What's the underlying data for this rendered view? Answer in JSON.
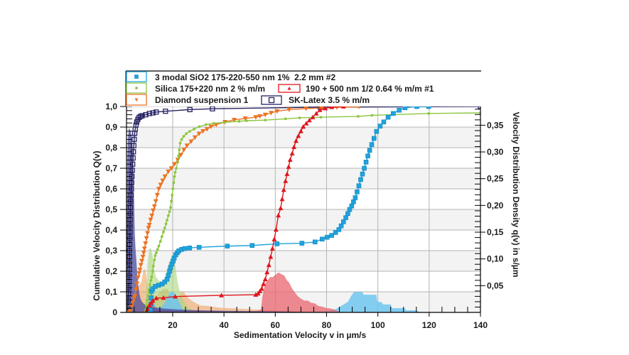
{
  "chart_data": {
    "type": "line",
    "title": "",
    "xlabel": "Sedimentation Velocity v in µm/s",
    "ylabel": "Cumulative Velocity Distribution Q(v)",
    "y2label": "Velocity Distribution Density q(v) in s/µm",
    "xlim": [
      2,
      140
    ],
    "ylim": [
      0,
      1
    ],
    "y2lim": [
      0,
      0.385
    ],
    "xticks": [
      20,
      40,
      60,
      80,
      100,
      120,
      140
    ],
    "xtick_labels": [
      "20",
      "40",
      "60",
      "80",
      "100",
      "120",
      "140"
    ],
    "yticks": [
      0,
      0.1,
      0.2,
      0.3,
      0.4,
      0.5,
      0.6,
      0.7,
      0.8,
      0.9,
      1.0
    ],
    "ytick_labels": [
      "0",
      "0,1",
      "0,2",
      "0,3",
      "0,4",
      "0,5",
      "0,6",
      "0,7",
      "0,8",
      "0,9",
      "1,0"
    ],
    "y2ticks": [
      0.05,
      0.1,
      0.15,
      0.2,
      0.25,
      0.3,
      0.35
    ],
    "y2tick_labels": [
      "0,05",
      "0,10",
      "0,15",
      "0,20",
      "0,25",
      "0,30",
      "0,35"
    ],
    "grid": true,
    "legend_position": "top",
    "series": [
      {
        "name": "3 modal SiO2 175-220-550 nm 1%  2.2 mm #2",
        "color": "#1fa3dd",
        "fill_color": "#6ec6ee",
        "marker": "square",
        "cumulative": {
          "x": [
            11.0,
            11.3,
            11.5,
            11.6,
            11.8,
            12.2,
            13.2,
            14.5,
            15.9,
            16.9,
            17.8,
            18.3,
            18.8,
            19.2,
            19.7,
            20.2,
            20.6,
            21.2,
            21.8,
            22.4,
            23.5,
            24.7,
            26.6,
            30.3,
            41.3,
            51.0,
            60.7,
            70.4,
            75.5,
            78.3,
            80.2,
            82.0,
            83.5,
            84.8,
            85.7,
            86.6,
            87.5,
            88.3,
            89.0,
            89.8,
            90.5,
            91.2,
            91.9,
            92.6,
            93.3,
            94.0,
            94.7,
            95.4,
            96.1,
            96.8,
            97.6,
            98.5,
            99.5,
            100.9,
            102.3,
            104.0,
            106.0,
            108.3,
            110.6,
            115.2,
            119.8
          ],
          "y": [
            0.0,
            0.011,
            0.04,
            0.07,
            0.103,
            0.115,
            0.126,
            0.132,
            0.138,
            0.148,
            0.161,
            0.18,
            0.2,
            0.218,
            0.235,
            0.25,
            0.264,
            0.28,
            0.29,
            0.299,
            0.306,
            0.31,
            0.313,
            0.316,
            0.322,
            0.325,
            0.333,
            0.336,
            0.342,
            0.356,
            0.365,
            0.374,
            0.388,
            0.402,
            0.42,
            0.44,
            0.46,
            0.48,
            0.5,
            0.517,
            0.537,
            0.557,
            0.585,
            0.615,
            0.645,
            0.672,
            0.7,
            0.73,
            0.76,
            0.787,
            0.815,
            0.845,
            0.879,
            0.905,
            0.925,
            0.948,
            0.966,
            0.982,
            0.994,
            1.0,
            1.0
          ]
        },
        "density": {
          "x": [
            11.0,
            11.5,
            12.0,
            12.5,
            13.5,
            15.0,
            16.5,
            18.0,
            19.5,
            21.0,
            22.5,
            24.0,
            26.0,
            30.0,
            50.0,
            70.0,
            78.0,
            80.0,
            82.0,
            84.0,
            86.0,
            88.4,
            89.5,
            90.7,
            94.0,
            94.5,
            99.4,
            99.8,
            101.5,
            102.0,
            105.0,
            105.5,
            110.5,
            111.0,
            115.0,
            116.0,
            120.0
          ],
          "q": [
            0.0,
            0.03,
            0.035,
            0.02,
            0.01,
            0.008,
            0.015,
            0.03,
            0.04,
            0.035,
            0.02,
            0.006,
            0.002,
            0.001,
            0.001,
            0.001,
            0.002,
            0.003,
            0.004,
            0.007,
            0.013,
            0.02,
            0.03,
            0.038,
            0.038,
            0.033,
            0.033,
            0.02,
            0.019,
            0.015,
            0.015,
            0.008,
            0.008,
            0.004,
            0.004,
            0.001,
            0.0
          ]
        }
      },
      {
        "name": "Silica 175+220 nm 2 % m/m",
        "color": "#8cc63e",
        "fill_color": "#a9d67d",
        "marker": "circle",
        "cumulative": {
          "x": [
            9.2,
            9.5,
            9.8,
            10.1,
            10.4,
            10.8,
            11.1,
            11.5,
            11.8,
            12.2,
            12.5,
            12.9,
            13.2,
            13.6,
            14.1,
            14.6,
            15.2,
            15.8,
            16.4,
            16.9,
            17.4,
            17.8,
            18.3,
            18.8,
            19.2,
            19.5,
            19.8,
            20.1,
            20.4,
            20.7,
            21.0,
            21.4,
            22.0,
            22.3,
            22.6,
            22.9,
            23.5,
            24.3,
            25.3,
            26.6,
            28.3,
            30.3,
            33.0,
            36.0,
            40.0,
            45.9,
            48.8,
            56.1,
            64.0,
            69.5,
            77.8,
            92.3,
            97.7,
            119.8,
            140
          ],
          "y": [
            0.0,
            0.011,
            0.035,
            0.06,
            0.08,
            0.11,
            0.135,
            0.155,
            0.172,
            0.2,
            0.225,
            0.255,
            0.276,
            0.29,
            0.305,
            0.322,
            0.345,
            0.368,
            0.391,
            0.41,
            0.43,
            0.448,
            0.47,
            0.49,
            0.51,
            0.54,
            0.57,
            0.6,
            0.63,
            0.66,
            0.68,
            0.7,
            0.73,
            0.76,
            0.79,
            0.822,
            0.84,
            0.855,
            0.868,
            0.879,
            0.89,
            0.902,
            0.912,
            0.918,
            0.923,
            0.928,
            0.931,
            0.934,
            0.94,
            0.945,
            0.948,
            0.952,
            0.957,
            0.966,
            0.969
          ]
        },
        "density": {
          "x": [
            8.5,
            9.5,
            10.2,
            10.9,
            11.5,
            12.0,
            12.8,
            13.5,
            14.5,
            15.5,
            16.5,
            17.3,
            18.0,
            18.8,
            19.5,
            20.3,
            21.0,
            21.8,
            22.5,
            23.5,
            24.5,
            26.0,
            28.0,
            30.0
          ],
          "q": [
            0.0,
            0.03,
            0.09,
            0.12,
            0.12,
            0.11,
            0.08,
            0.066,
            0.06,
            0.057,
            0.06,
            0.07,
            0.085,
            0.095,
            0.105,
            0.11,
            0.09,
            0.06,
            0.044,
            0.03,
            0.02,
            0.01,
            0.004,
            0.0
          ]
        }
      },
      {
        "name": "190 + 500 nm 1/2 0.64 % m/m #1",
        "color": "#e0161c",
        "fill_color": "#e9646e",
        "marker": "triangle-up",
        "cumulative": {
          "x": [
            9.5,
            10.2,
            10.9,
            11.6,
            12.3,
            13.6,
            16.4,
            21.0,
            39.0,
            52.4,
            53.3,
            54.0,
            54.7,
            55.4,
            56.1,
            56.8,
            57.5,
            58.2,
            58.9,
            59.6,
            60.3,
            61.2,
            62.1,
            62.7,
            63.3,
            64.0,
            64.6,
            65.2,
            65.8,
            66.6,
            67.3,
            68.1,
            69.0,
            70.0,
            70.9,
            72.1,
            73.3,
            74.6,
            76.0,
            77.4,
            79.5,
            82.0,
            86.6
          ],
          "y": [
            0.0,
            0.017,
            0.034,
            0.046,
            0.057,
            0.069,
            0.071,
            0.077,
            0.083,
            0.086,
            0.092,
            0.103,
            0.115,
            0.138,
            0.161,
            0.195,
            0.23,
            0.27,
            0.31,
            0.355,
            0.402,
            0.471,
            0.506,
            0.55,
            0.595,
            0.638,
            0.672,
            0.707,
            0.741,
            0.772,
            0.803,
            0.833,
            0.857,
            0.88,
            0.902,
            0.918,
            0.933,
            0.948,
            0.966,
            0.983,
            0.991,
            0.997,
            1.0
          ]
        },
        "density": {
          "x": [
            9.2,
            10.0,
            11.0,
            12.3,
            13.5,
            16.0,
            20.0,
            30.0,
            40.0,
            50.0,
            53.0,
            54.4,
            55.0,
            56.0,
            57.0,
            58.0,
            59.0,
            60.0,
            61.0,
            61.6,
            62.5,
            63.5,
            64.5,
            65.4,
            66.5,
            67.7,
            68.8,
            69.9,
            71.3,
            72.7,
            74.0,
            75.4,
            76.8,
            78.2,
            80.0,
            82.0,
            84.0,
            86.0
          ],
          "q": [
            0.0,
            0.012,
            0.017,
            0.015,
            0.006,
            0.004,
            0.003,
            0.003,
            0.002,
            0.002,
            0.003,
            0.005,
            0.03,
            0.053,
            0.06,
            0.066,
            0.066,
            0.07,
            0.074,
            0.074,
            0.071,
            0.069,
            0.06,
            0.056,
            0.045,
            0.037,
            0.03,
            0.026,
            0.022,
            0.022,
            0.018,
            0.017,
            0.012,
            0.011,
            0.008,
            0.007,
            0.003,
            0.0
          ]
        }
      },
      {
        "name": "Diamond suspension 1",
        "color": "#ec7222",
        "fill_color": "#f0a463",
        "marker": "triangle-down",
        "cumulative": {
          "x": [
            2.8,
            3.5,
            4.0,
            4.5,
            5.0,
            5.3,
            5.7,
            6.1,
            6.5,
            6.9,
            7.2,
            7.6,
            8.0,
            8.4,
            8.7,
            9.0,
            9.4,
            9.8,
            10.2,
            10.6,
            10.9,
            11.4,
            11.9,
            12.4,
            12.9,
            13.4,
            14.0,
            14.6,
            15.3,
            16.1,
            17.0,
            18.3,
            19.5,
            20.7,
            22.0,
            23.2,
            24.4,
            25.6,
            27.2,
            28.7,
            30.3,
            31.8,
            33.4,
            34.9,
            37.0,
            40.4,
            44.0,
            48.3,
            52.4,
            54.0,
            56.1,
            58.4,
            60.7,
            65.4,
            72.0,
            78.0,
            84.0,
            92.6
          ],
          "y": [
            0.0,
            0.006,
            0.03,
            0.05,
            0.07,
            0.08,
            0.11,
            0.14,
            0.17,
            0.19,
            0.207,
            0.23,
            0.25,
            0.27,
            0.29,
            0.31,
            0.335,
            0.36,
            0.385,
            0.41,
            0.425,
            0.45,
            0.47,
            0.495,
            0.515,
            0.54,
            0.57,
            0.6,
            0.62,
            0.64,
            0.66,
            0.684,
            0.7,
            0.72,
            0.741,
            0.765,
            0.79,
            0.81,
            0.83,
            0.85,
            0.868,
            0.88,
            0.89,
            0.902,
            0.912,
            0.925,
            0.935,
            0.942,
            0.948,
            0.953,
            0.96,
            0.969,
            0.977,
            0.985,
            0.99,
            0.993,
            0.996,
            0.999
          ]
        },
        "density": {
          "x": [
            3.5,
            4.5,
            5.0,
            5.9,
            6.8,
            7.8,
            8.6,
            9.5,
            10.0,
            10.6,
            12.0,
            13.5,
            15.0,
            16.5,
            18.0,
            18.9,
            20.0,
            21.0,
            22.5,
            23.5,
            24.4,
            26.0,
            28.0,
            30.8,
            34.0,
            38.0,
            42.0,
            46.0,
            50.0,
            55.0,
            60.0,
            65.0,
            70.0,
            75.0
          ],
          "q": [
            0.0,
            0.02,
            0.03,
            0.044,
            0.05,
            0.057,
            0.08,
            0.08,
            0.057,
            0.04,
            0.035,
            0.03,
            0.038,
            0.044,
            0.044,
            0.036,
            0.025,
            0.017,
            0.03,
            0.04,
            0.038,
            0.027,
            0.02,
            0.013,
            0.012,
            0.009,
            0.008,
            0.007,
            0.006,
            0.005,
            0.004,
            0.003,
            0.002,
            0.0
          ]
        }
      },
      {
        "name": "SK-Latex 3.5 % m/m",
        "color": "#262262",
        "fill_color": "#4a4a9a",
        "marker": "open-square",
        "cumulative": {
          "x": [
            2.45,
            2.55,
            2.65,
            2.75,
            2.85,
            2.95,
            3.0,
            3.05,
            3.1,
            3.15,
            3.2,
            3.25,
            3.3,
            3.35,
            3.4,
            3.45,
            3.5,
            3.55,
            3.65,
            3.75,
            3.9,
            4.0,
            4.1,
            4.25,
            4.4,
            4.55,
            4.7,
            4.85,
            5.0,
            5.2,
            5.4,
            5.7,
            6.0,
            6.4,
            6.9,
            7.5,
            8.1,
            9.5,
            10.9,
            12.3,
            13.6,
            17.2,
            26.7,
            35.5,
            77.5,
            140
          ],
          "y": [
            0.0,
            0.03,
            0.06,
            0.09,
            0.12,
            0.15,
            0.18,
            0.21,
            0.24,
            0.27,
            0.3,
            0.33,
            0.36,
            0.39,
            0.42,
            0.45,
            0.48,
            0.51,
            0.54,
            0.57,
            0.6,
            0.63,
            0.66,
            0.69,
            0.72,
            0.75,
            0.78,
            0.81,
            0.84,
            0.87,
            0.89,
            0.91,
            0.925,
            0.937,
            0.947,
            0.952,
            0.955,
            0.96,
            0.966,
            0.969,
            0.973,
            0.977,
            0.985,
            0.989,
            0.997,
            1.0
          ]
        },
        "density": {
          "x": [
            2.0,
            2.3,
            2.6,
            3.0,
            3.5,
            4.0,
            4.5,
            4.9,
            5.2,
            5.5,
            5.8,
            6.2,
            6.6,
            7.0,
            7.5,
            8.0,
            9.0,
            10.0,
            12.0,
            15.0,
            20.0,
            30.0,
            40.0,
            60.0,
            80.0
          ],
          "q": [
            0.12,
            0.28,
            0.33,
            0.345,
            0.34,
            0.33,
            0.3,
            0.22,
            0.15,
            0.12,
            0.1,
            0.07,
            0.05,
            0.035,
            0.025,
            0.02,
            0.015,
            0.012,
            0.01,
            0.008,
            0.006,
            0.004,
            0.003,
            0.002,
            0.0
          ]
        }
      }
    ]
  }
}
